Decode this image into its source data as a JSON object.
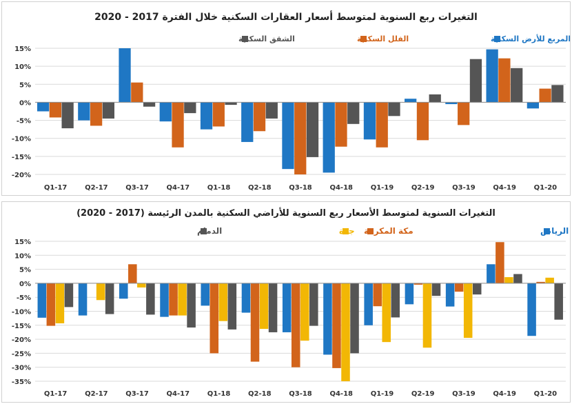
{
  "colors": {
    "blue": "#1f77c4",
    "orange": "#d2641b",
    "yellow": "#f2b705",
    "gray": "#555555"
  },
  "chart_data": [
    {
      "type": "bar",
      "title": "التغيرات ربع السنوية لمتوسط أسعار العقارات السكنية خلال الفترة 2017 - 2020",
      "categories": [
        "Q1-17",
        "Q2-17",
        "Q3-17",
        "Q4-17",
        "Q1-18",
        "Q2-18",
        "Q3-18",
        "Q4-18",
        "Q1-19",
        "Q2-19",
        "Q3-19",
        "Q4-19",
        "Q1-20"
      ],
      "ylim": [
        -20,
        15
      ],
      "yticks": [
        15,
        10,
        5,
        0,
        -5,
        -10,
        -15,
        -20
      ],
      "ytick_labels": [
        "15%",
        "10%",
        "5%",
        "0%",
        "-5%",
        "-10%",
        "-15%",
        "-20%"
      ],
      "xlabel": "",
      "ylabel": "",
      "grid": true,
      "legend": "top",
      "series": [
        {
          "name": "المتر المربع للأرض السكنية",
          "color": "#1f77c4",
          "values": [
            -2.5,
            -5,
            15,
            -5.3,
            -7.5,
            -11,
            -18.5,
            -19.5,
            -10.3,
            1,
            -0.5,
            14.7,
            -1.7
          ]
        },
        {
          "name": "الفلل السكنية",
          "color": "#d2641b",
          "values": [
            -4.2,
            -6.5,
            5.5,
            -12.5,
            -6.7,
            -8,
            -20,
            -12.3,
            -12.5,
            -10.5,
            -6.3,
            12.2,
            3.8
          ]
        },
        {
          "name": "الشقق السكنية",
          "color": "#555555",
          "values": [
            -7.2,
            -4.5,
            -1.2,
            -3,
            -0.7,
            -4.5,
            -15.2,
            -6,
            -3.8,
            2.2,
            12,
            9.5,
            4.8
          ]
        }
      ]
    },
    {
      "type": "bar",
      "title": "التغيرات السنوية لمتوسط الأسعار ربع السنوية للأراضي السكنية بالمدن الرئيسة (2017 - 2020)",
      "categories": [
        "Q1-17",
        "Q2-17",
        "Q3-17",
        "Q4-17",
        "Q1-18",
        "Q2-18",
        "Q3-18",
        "Q4-18",
        "Q1-19",
        "Q2-19",
        "Q3-19",
        "Q4-19",
        "Q1-20"
      ],
      "ylim": [
        -35,
        15
      ],
      "yticks": [
        15,
        10,
        5,
        0,
        -5,
        -10,
        -15,
        -20,
        -25,
        -30,
        -35
      ],
      "ytick_labels": [
        "15%",
        "10%",
        "5%",
        "0%",
        "-5%",
        "-10%",
        "-15%",
        "-20%",
        "-25%",
        "-30%",
        "-35%"
      ],
      "xlabel": "",
      "ylabel": "",
      "grid": true,
      "legend": "top",
      "series": [
        {
          "name": "الرياض",
          "color": "#1f77c4",
          "values": [
            -12.3,
            -11.5,
            -5.5,
            -12,
            -8,
            -10.5,
            -17.5,
            -25.5,
            -15,
            -7.5,
            -8.3,
            6.8,
            -18.8
          ]
        },
        {
          "name": "مكة المكرمة",
          "color": "#d2641b",
          "values": [
            -15.2,
            0,
            6.8,
            -11.5,
            -25,
            -28,
            -30,
            -30.3,
            -8.2,
            -0.5,
            -3,
            14.7,
            0.5
          ]
        },
        {
          "name": "جدة",
          "color": "#f2b705",
          "values": [
            -14.3,
            -6,
            -1.5,
            -11.5,
            -13.5,
            -16.3,
            -20.5,
            -35,
            -21,
            -23,
            -19.5,
            2.2,
            2
          ]
        },
        {
          "name": "الدمام",
          "color": "#555555",
          "values": [
            -8.5,
            -11,
            -11.2,
            -15.8,
            -16.5,
            -17.5,
            -15.2,
            -25,
            -12.2,
            -4.5,
            -4,
            3.3,
            -13
          ]
        }
      ]
    }
  ]
}
